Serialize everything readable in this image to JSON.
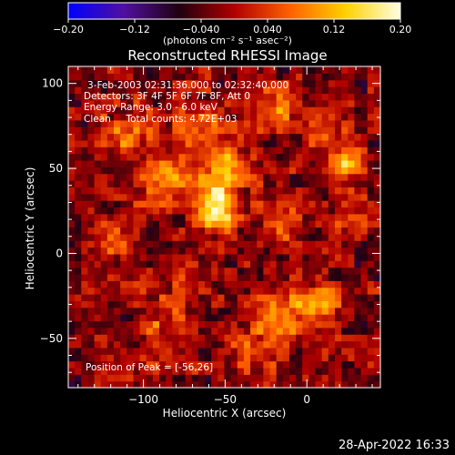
{
  "colorbar": {
    "ticks": [
      "-0.20",
      "-0.12",
      "-0.040",
      "0.040",
      "0.12",
      "0.20"
    ],
    "units": "(photons cm⁻² s⁻¹ asec⁻²)",
    "min": -0.2,
    "max": 0.2,
    "colors": [
      "#0000ff",
      "#5010a0",
      "#200010",
      "#b00000",
      "#ff6000",
      "#ffd000",
      "#ffffe0"
    ]
  },
  "chart_data": {
    "type": "heatmap",
    "title": "Reconstructed RHESSI Image",
    "xlabel": "Heliocentric X (arcsec)",
    "ylabel": "Heliocentric Y (arcsec)",
    "xlim": [
      -146,
      45
    ],
    "ylim": [
      -79,
      110
    ],
    "xticks": [
      {
        "value": -100,
        "label": "−100"
      },
      {
        "value": -50,
        "label": "−50"
      },
      {
        "value": 0,
        "label": "0"
      }
    ],
    "yticks": [
      {
        "value": 100,
        "label": "100"
      },
      {
        "value": 50,
        "label": "50"
      },
      {
        "value": 0,
        "label": "0"
      },
      {
        "value": -50,
        "label": "−50"
      }
    ],
    "peak": [
      -56,
      26
    ],
    "annotations": [
      "3-Feb-2003 02:31:36.000 to 02:32:40.000",
      "Detectors: 3F 4F 5F 6F 7F 8F, Att 0",
      "Energy Range: 3.0 - 6.0 keV",
      "Clean     Total counts: 4.72E+03"
    ],
    "peak_label": "Position of Peak = [-56,26]"
  },
  "timestamp": "28-Apr-2022 16:33"
}
